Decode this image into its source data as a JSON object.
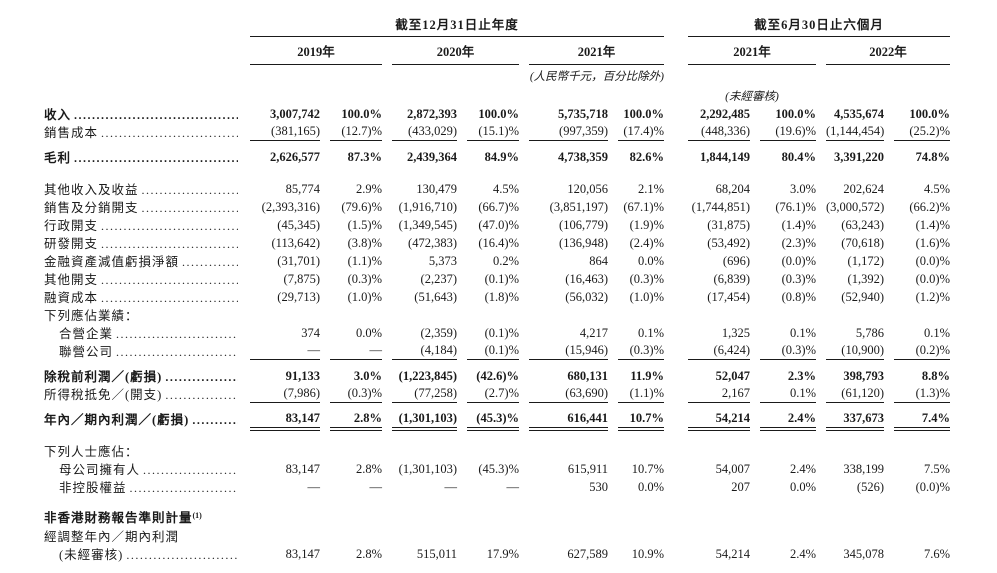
{
  "page": {
    "background": "#ffffff",
    "text_color": "#1a1a1a",
    "rule_color": "#1a1a1a"
  },
  "header": {
    "group_annual": {
      "title": "截至12月31日止年度",
      "years": [
        "2019年",
        "2020年",
        "2021年"
      ]
    },
    "group_interim": {
      "title": "截至6月30日止六個月",
      "years": [
        "2021年",
        "2022年"
      ]
    },
    "unit_note": "(人民幣千元，百分比除外)",
    "unaudited_note": "(未經審核)"
  },
  "table": {
    "rows": [
      {
        "type": "data",
        "label": "收入",
        "bold": true,
        "dots": true,
        "cells": [
          "3,007,742",
          "100.0%",
          "2,872,393",
          "100.0%",
          "5,735,718",
          "100.0%",
          "2,292,485",
          "100.0%",
          "4,535,674",
          "100.0%"
        ]
      },
      {
        "type": "data",
        "label": "銷售成本",
        "dots": true,
        "underline": "single",
        "cells": [
          "(381,165)",
          "(12.7)%",
          "(433,029)",
          "(15.1)%",
          "(997,359)",
          "(17.4)%",
          "(448,336)",
          "(19.6)%",
          "(1,144,454)",
          "(25.2)%"
        ]
      },
      {
        "type": "data",
        "label": "毛利",
        "bold": true,
        "dots": true,
        "gap": "sm",
        "cells": [
          "2,626,577",
          "87.3%",
          "2,439,364",
          "84.9%",
          "4,738,359",
          "82.6%",
          "1,844,149",
          "80.4%",
          "3,391,220",
          "74.8%"
        ]
      },
      {
        "type": "data",
        "label": "其他收入及收益",
        "dots": true,
        "gap": "md",
        "cells": [
          "85,774",
          "2.9%",
          "130,479",
          "4.5%",
          "120,056",
          "2.1%",
          "68,204",
          "3.0%",
          "202,624",
          "4.5%"
        ]
      },
      {
        "type": "data",
        "label": "銷售及分銷開支",
        "dots": true,
        "cells": [
          "(2,393,316)",
          "(79.6)%",
          "(1,916,710)",
          "(66.7)%",
          "(3,851,197)",
          "(67.1)%",
          "(1,744,851)",
          "(76.1)%",
          "(3,000,572)",
          "(66.2)%"
        ]
      },
      {
        "type": "data",
        "label": "行政開支",
        "dots": true,
        "cells": [
          "(45,345)",
          "(1.5)%",
          "(1,349,545)",
          "(47.0)%",
          "(106,779)",
          "(1.9)%",
          "(31,875)",
          "(1.4)%",
          "(63,243)",
          "(1.4)%"
        ]
      },
      {
        "type": "data",
        "label": "研發開支",
        "dots": true,
        "cells": [
          "(113,642)",
          "(3.8)%",
          "(472,383)",
          "(16.4)%",
          "(136,948)",
          "(2.4)%",
          "(53,492)",
          "(2.3)%",
          "(70,618)",
          "(1.6)%"
        ]
      },
      {
        "type": "data",
        "label": "金融資產減值虧損淨額",
        "dots": true,
        "cells": [
          "(31,701)",
          "(1.1)%",
          "5,373",
          "0.2%",
          "864",
          "0.0%",
          "(696)",
          "(0.0)%",
          "(1,172)",
          "(0.0)%"
        ]
      },
      {
        "type": "data",
        "label": "其他開支",
        "dots": true,
        "cells": [
          "(7,875)",
          "(0.3)%",
          "(2,237)",
          "(0.1)%",
          "(16,463)",
          "(0.3)%",
          "(6,839)",
          "(0.3)%",
          "(1,392)",
          "(0.0)%"
        ]
      },
      {
        "type": "data",
        "label": "融資成本",
        "dots": true,
        "cells": [
          "(29,713)",
          "(1.0)%",
          "(51,643)",
          "(1.8)%",
          "(56,032)",
          "(1.0)%",
          "(17,454)",
          "(0.8)%",
          "(52,940)",
          "(1.2)%"
        ]
      },
      {
        "type": "section",
        "label": "下列應佔業績："
      },
      {
        "type": "data",
        "label": "合營企業",
        "indent": 1,
        "dots": true,
        "cells": [
          "374",
          "0.0%",
          "(2,359)",
          "(0.1)%",
          "4,217",
          "0.1%",
          "1,325",
          "0.1%",
          "5,786",
          "0.1%"
        ]
      },
      {
        "type": "data",
        "label": "聯營公司",
        "indent": 1,
        "dots": true,
        "underline": "single",
        "cells": [
          "—",
          "—",
          "(4,184)",
          "(0.1)%",
          "(15,946)",
          "(0.3)%",
          "(6,424)",
          "(0.3)%",
          "(10,900)",
          "(0.2)%"
        ]
      },
      {
        "type": "data",
        "label": "除稅前利潤／(虧損)",
        "bold": true,
        "dots": true,
        "gap": "sm",
        "cells": [
          "91,133",
          "3.0%",
          "(1,223,845)",
          "(42.6)%",
          "680,131",
          "11.9%",
          "52,047",
          "2.3%",
          "398,793",
          "8.8%"
        ]
      },
      {
        "type": "data",
        "label": "所得稅抵免／(開支)",
        "dots": true,
        "underline": "single",
        "cells": [
          "(7,986)",
          "(0.3)%",
          "(77,258)",
          "(2.7)%",
          "(63,690)",
          "(1.1)%",
          "2,167",
          "0.1%",
          "(61,120)",
          "(1.3)%"
        ]
      },
      {
        "type": "data",
        "label": "年內／期內利潤／(虧損)",
        "bold": true,
        "dots": true,
        "gap": "sm",
        "underline": "double",
        "cells": [
          "83,147",
          "2.8%",
          "(1,301,103)",
          "(45.3)%",
          "616,441",
          "10.7%",
          "54,214",
          "2.4%",
          "337,673",
          "7.4%"
        ]
      },
      {
        "type": "section",
        "label": "下列人士應佔：",
        "gap": "md"
      },
      {
        "type": "data",
        "label": "母公司擁有人",
        "indent": 1,
        "dots": true,
        "cells": [
          "83,147",
          "2.8%",
          "(1,301,103)",
          "(45.3)%",
          "615,911",
          "10.7%",
          "54,007",
          "2.4%",
          "338,199",
          "7.5%"
        ]
      },
      {
        "type": "data",
        "label": "非控股權益",
        "indent": 1,
        "dots": true,
        "cells": [
          "—",
          "—",
          "—",
          "—",
          "530",
          "0.0%",
          "207",
          "0.0%",
          "(526)",
          "(0.0)%"
        ]
      },
      {
        "type": "section",
        "label": "非香港財務報告準則計量",
        "sup": "(1)",
        "bold": true,
        "gap": "lg"
      },
      {
        "type": "section",
        "label": "經調整年內／期內利潤"
      },
      {
        "type": "data",
        "label": "(未經審核)",
        "indent": 1,
        "dots": true,
        "cells": [
          "83,147",
          "2.8%",
          "515,011",
          "17.9%",
          "627,589",
          "10.9%",
          "54,214",
          "2.4%",
          "345,078",
          "7.6%"
        ]
      }
    ]
  }
}
